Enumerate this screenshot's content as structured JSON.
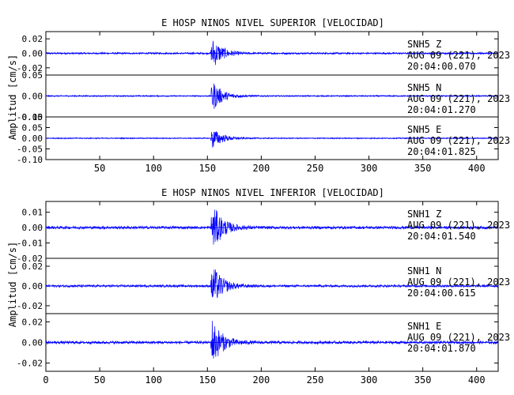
{
  "chart_data": [
    {
      "type": "line",
      "title": "E HOSP NINOS NIVEL SUPERIOR [VELOCIDAD]",
      "ylabel": "Amplitud [cm/s]",
      "xlabel": "",
      "xlim": [
        0,
        420
      ],
      "x_ticks": [
        50,
        100,
        150,
        200,
        250,
        300,
        350,
        400
      ],
      "grid": false,
      "line_color": "#0000ff",
      "traces": [
        {
          "station": "SNH5",
          "component": "Z",
          "date": "AUG 09 (221), 2023",
          "time": "20:04:00.070",
          "ylim": [
            -0.03,
            0.03
          ],
          "y_ticks": [
            0.02,
            0.0,
            -0.02
          ],
          "y_tick_labels": [
            "0.02",
            "0.00",
            "-0.02"
          ],
          "arrival_x": 153,
          "peak_amplitude": 0.026,
          "noise_amplitude": 0.0012
        },
        {
          "station": "SNH5",
          "component": "N",
          "date": "AUG 09 (221), 2023",
          "time": "20:04:01.270",
          "ylim": [
            -0.05,
            0.05
          ],
          "y_ticks": [
            0.05,
            0.0,
            -0.05
          ],
          "y_tick_labels": [
            "0.05",
            "0.00",
            "-0.05"
          ],
          "arrival_x": 153,
          "peak_amplitude": 0.045,
          "noise_amplitude": 0.0015
        },
        {
          "station": "SNH5",
          "component": "E",
          "date": "AUG 09 (221), 2023",
          "time": "20:04:01.825",
          "ylim": [
            -0.1,
            0.1
          ],
          "y_ticks": [
            0.1,
            0.05,
            0.0,
            -0.05,
            -0.1
          ],
          "y_tick_labels": [
            "0.10",
            "0.05",
            "0.00",
            "-0.05",
            "-0.10"
          ],
          "arrival_x": 153,
          "peak_amplitude": 0.06,
          "noise_amplitude": 0.0025
        }
      ]
    },
    {
      "type": "line",
      "title": "E HOSP NINOS NIVEL INFERIOR [VELOCIDAD]",
      "ylabel": "Amplitud [cm/s]",
      "xlabel": "",
      "xlim": [
        0,
        420
      ],
      "x_ticks": [
        0,
        50,
        100,
        150,
        200,
        250,
        300,
        350,
        400
      ],
      "grid": false,
      "line_color": "#0000ff",
      "traces": [
        {
          "station": "SNH1",
          "component": "Z",
          "date": "AUG 09 (221), 2023",
          "time": "20:04:01.540",
          "ylim": [
            -0.02,
            0.017
          ],
          "y_ticks": [
            0.01,
            0.0,
            -0.01,
            -0.02
          ],
          "y_tick_labels": [
            "0.01",
            "0.00",
            "-0.01",
            "-0.02"
          ],
          "arrival_x": 153,
          "peak_amplitude": 0.019,
          "noise_amplitude": 0.0009
        },
        {
          "station": "SNH1",
          "component": "N",
          "date": "AUG 09 (221), 2023",
          "time": "20:04:00.615",
          "ylim": [
            -0.028,
            0.028
          ],
          "y_ticks": [
            0.02,
            0.0,
            -0.02
          ],
          "y_tick_labels": [
            "0.02",
            "0.00",
            "-0.02"
          ],
          "arrival_x": 153,
          "peak_amplitude": 0.026,
          "noise_amplitude": 0.0012
        },
        {
          "station": "SNH1",
          "component": "E",
          "date": "AUG 09 (221), 2023",
          "time": "20:04:01.870",
          "ylim": [
            -0.028,
            0.028
          ],
          "y_ticks": [
            0.02,
            0.0,
            -0.02
          ],
          "y_tick_labels": [
            "0.02",
            "0.00",
            "-0.02"
          ],
          "arrival_x": 153,
          "peak_amplitude": 0.027,
          "noise_amplitude": 0.0014
        }
      ]
    }
  ]
}
